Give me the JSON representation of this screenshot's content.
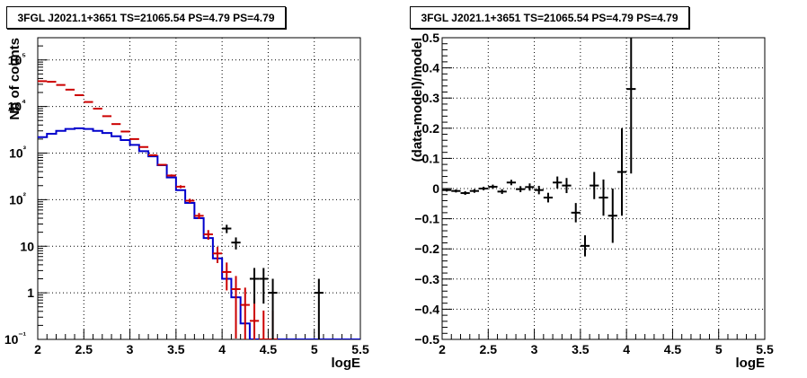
{
  "chart_data": [
    {
      "type": "histogram",
      "title": "3FGL J2021.1+3651 TS=21065.54 PS=4.79 PS=4.79",
      "xlabel": "logE",
      "ylabel": "Nb of counts",
      "xlim": [
        2,
        5.5
      ],
      "ylim": [
        0.1,
        300000
      ],
      "yscale": "log",
      "grid": true,
      "x_ticks": [
        "2",
        "2.5",
        "3",
        "3.5",
        "4",
        "4.5",
        "5",
        "5.5"
      ],
      "y_ticks": [
        "10⁻¹",
        "1",
        "10",
        "10²",
        "10³",
        "10⁴",
        "10⁵"
      ],
      "bin_width": 0.1,
      "series": [
        {
          "color": "#cc0000",
          "style": "points-with-errors",
          "x": [
            2.05,
            2.15,
            2.25,
            2.35,
            2.45,
            2.55,
            2.65,
            2.75,
            2.85,
            2.95,
            3.05,
            3.15,
            3.25,
            3.35,
            3.45,
            3.55,
            3.65,
            3.75,
            3.85,
            3.95,
            4.05,
            4.15,
            4.25,
            4.35,
            4.45,
            4.55
          ],
          "values": [
            35000,
            34000,
            29000,
            23000,
            17500,
            12500,
            9000,
            6200,
            4200,
            2900,
            2000,
            1350,
            900,
            560,
            330,
            190,
            95,
            45,
            18,
            7,
            2.8,
            1.2,
            0.55,
            0.25,
            0.1,
            0.1
          ]
        },
        {
          "color": "#0000cc",
          "style": "step",
          "x": [
            2.05,
            2.15,
            2.25,
            2.35,
            2.45,
            2.55,
            2.65,
            2.75,
            2.85,
            2.95,
            3.05,
            3.15,
            3.25,
            3.35,
            3.45,
            3.55,
            3.65,
            3.75,
            3.85,
            3.95,
            4.05,
            4.15,
            4.25,
            4.35,
            4.45,
            4.55
          ],
          "values": [
            2200,
            2600,
            3000,
            3300,
            3400,
            3300,
            3000,
            2700,
            2300,
            1900,
            1500,
            1100,
            850,
            550,
            300,
            160,
            85,
            40,
            15,
            5.5,
            2.0,
            0.8,
            0.22,
            0.1,
            0.1,
            0.1
          ]
        },
        {
          "color": "#000000",
          "style": "points-with-errors",
          "x": [
            4.05,
            4.15,
            4.35,
            4.45,
            4.55,
            5.05
          ],
          "values": [
            24,
            12,
            2,
            2,
            1,
            1
          ]
        }
      ]
    },
    {
      "type": "scatter",
      "title": "3FGL J2021.1+3651 TS=21065.54 PS=4.79 PS=4.79",
      "xlabel": "logE",
      "ylabel": "(data-model)/model",
      "xlim": [
        2,
        5.5
      ],
      "ylim": [
        -0.5,
        0.5
      ],
      "grid": true,
      "x_ticks": [
        "2",
        "2.5",
        "3",
        "3.5",
        "4",
        "4.5",
        "5",
        "5.5"
      ],
      "y_ticks": [
        "−0.5",
        "−0.4",
        "−0.3",
        "−0.2",
        "−0.1",
        "0",
        "0.1",
        "0.2",
        "0.3",
        "0.4",
        "0.5"
      ],
      "x_error": 0.05,
      "series": [
        {
          "color": "#000000",
          "x": [
            2.05,
            2.15,
            2.25,
            2.35,
            2.45,
            2.55,
            2.65,
            2.75,
            2.85,
            2.95,
            3.05,
            3.15,
            3.25,
            3.35,
            3.45,
            3.55,
            3.65,
            3.75,
            3.85,
            3.95,
            4.05
          ],
          "values": [
            -0.005,
            -0.008,
            -0.015,
            -0.008,
            0.0,
            0.006,
            -0.01,
            0.02,
            -0.002,
            0.005,
            -0.005,
            -0.03,
            0.02,
            0.01,
            -0.08,
            -0.19,
            0.01,
            -0.03,
            -0.09,
            0.055,
            0.33
          ],
          "errors": [
            0.005,
            0.005,
            0.006,
            0.006,
            0.006,
            0.007,
            0.008,
            0.009,
            0.01,
            0.012,
            0.014,
            0.016,
            0.02,
            0.025,
            0.032,
            0.035,
            0.045,
            0.06,
            0.09,
            0.145,
            0.28
          ]
        }
      ]
    }
  ]
}
